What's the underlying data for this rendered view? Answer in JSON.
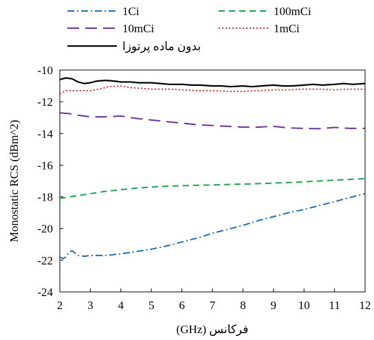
{
  "chart_data": {
    "type": "line",
    "title": "",
    "xlabel": "فرکانس (GHz)",
    "ylabel": "Monostatic RCS (dBm^2)",
    "xlim": [
      2,
      12
    ],
    "ylim": [
      -24,
      -10
    ],
    "x_ticks": [
      2,
      3,
      4,
      5,
      6,
      7,
      8,
      9,
      10,
      11,
      12
    ],
    "y_ticks": [
      -10,
      -12,
      -14,
      -16,
      -18,
      -20,
      -22,
      -24
    ],
    "grid": false,
    "legend_position": "top",
    "series": [
      {
        "name": "1Ci",
        "color": "#1F6FB4",
        "dash": "dash-dot",
        "x": [
          2.0,
          2.1,
          2.2,
          2.3,
          2.4,
          2.6,
          2.8,
          3.0,
          3.5,
          4.0,
          4.5,
          5.0,
          5.5,
          6.0,
          6.5,
          7.0,
          7.5,
          8.0,
          8.5,
          9.0,
          9.5,
          10.0,
          10.5,
          11.0,
          11.5,
          12.0
        ],
        "y": [
          -21.8,
          -21.9,
          -21.8,
          -21.5,
          -21.4,
          -21.7,
          -21.75,
          -21.7,
          -21.7,
          -21.6,
          -21.45,
          -21.3,
          -21.1,
          -20.85,
          -20.6,
          -20.3,
          -20.05,
          -19.8,
          -19.5,
          -19.25,
          -19.0,
          -18.8,
          -18.55,
          -18.3,
          -18.05,
          -17.8
        ]
      },
      {
        "name": "100mCi",
        "color": "#14A84B",
        "dash": "dash",
        "x": [
          2.0,
          2.5,
          3.0,
          3.5,
          4.0,
          4.5,
          5.0,
          5.5,
          6.0,
          6.5,
          7.0,
          7.5,
          8.0,
          8.5,
          9.0,
          9.5,
          10.0,
          10.5,
          11.0,
          11.5,
          12.0
        ],
        "y": [
          -18.1,
          -17.95,
          -17.8,
          -17.65,
          -17.55,
          -17.45,
          -17.38,
          -17.33,
          -17.3,
          -17.27,
          -17.25,
          -17.22,
          -17.2,
          -17.17,
          -17.13,
          -17.1,
          -17.05,
          -17.0,
          -16.95,
          -16.9,
          -16.85
        ]
      },
      {
        "name": "10mCi",
        "color": "#6A2FA3",
        "dash": "long-dash",
        "x": [
          2.0,
          2.3,
          2.6,
          3.0,
          3.5,
          4.0,
          4.5,
          5.0,
          5.5,
          6.0,
          6.5,
          7.0,
          7.5,
          8.0,
          8.5,
          9.0,
          9.5,
          10.0,
          10.5,
          11.0,
          11.5,
          12.0
        ],
        "y": [
          -12.7,
          -12.75,
          -12.85,
          -12.95,
          -12.95,
          -12.9,
          -13.05,
          -13.15,
          -13.25,
          -13.35,
          -13.45,
          -13.5,
          -13.55,
          -13.6,
          -13.6,
          -13.55,
          -13.65,
          -13.68,
          -13.7,
          -13.62,
          -13.68,
          -13.68
        ]
      },
      {
        "name": "1mCi",
        "color": "#E32B2B",
        "dash": "dot",
        "x": [
          2.0,
          2.2,
          2.5,
          3.0,
          3.3,
          3.6,
          4.0,
          4.3,
          4.6,
          5.0,
          5.5,
          6.0,
          6.5,
          7.0,
          7.5,
          8.0,
          8.5,
          9.0,
          9.5,
          10.0,
          10.5,
          11.0,
          11.5,
          12.0
        ],
        "y": [
          -11.5,
          -11.3,
          -11.3,
          -11.3,
          -11.2,
          -11.05,
          -11.0,
          -11.1,
          -11.15,
          -11.2,
          -11.2,
          -11.25,
          -11.3,
          -11.3,
          -11.35,
          -11.35,
          -11.3,
          -11.25,
          -11.25,
          -11.2,
          -11.2,
          -11.25,
          -11.2,
          -11.2
        ]
      },
      {
        "name": "بدون ماده پرتوزا",
        "color": "#000000",
        "dash": "solid",
        "x": [
          2.0,
          2.2,
          2.4,
          2.6,
          2.8,
          3.0,
          3.2,
          3.5,
          3.8,
          4.0,
          4.3,
          4.6,
          5.0,
          5.3,
          5.6,
          6.0,
          6.3,
          6.6,
          7.0,
          7.3,
          7.6,
          8.0,
          8.3,
          8.6,
          9.0,
          9.3,
          9.6,
          10.0,
          10.3,
          10.6,
          11.0,
          11.3,
          11.6,
          12.0
        ],
        "y": [
          -10.6,
          -10.5,
          -10.55,
          -10.75,
          -10.85,
          -10.8,
          -10.7,
          -10.65,
          -10.7,
          -10.75,
          -10.75,
          -10.8,
          -10.8,
          -10.85,
          -10.9,
          -10.9,
          -10.95,
          -10.95,
          -11.0,
          -11.0,
          -11.05,
          -11.0,
          -11.05,
          -11.0,
          -10.95,
          -11.0,
          -11.0,
          -10.95,
          -10.9,
          -10.95,
          -10.9,
          -10.85,
          -10.9,
          -10.85
        ]
      }
    ]
  }
}
